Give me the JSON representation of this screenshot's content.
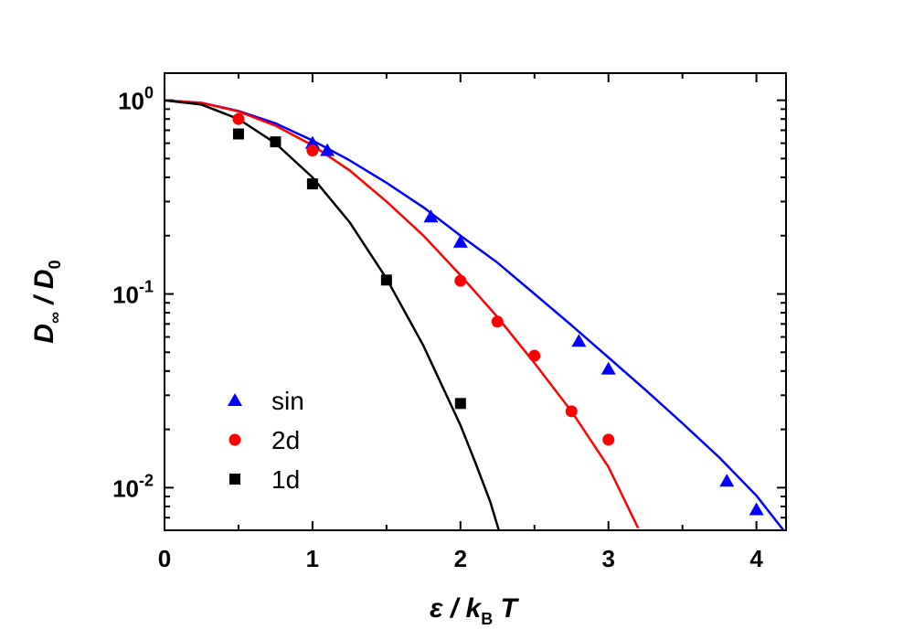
{
  "chart_data": {
    "type": "scatter",
    "title": "",
    "xlabel": {
      "main": "ε / k",
      "sub": "B",
      "tail": " T"
    },
    "ylabel": {
      "main": "D",
      "sub1": "∞",
      "mid": " / D",
      "sub2": "0"
    },
    "xlim": [
      0,
      4.2
    ],
    "ylim_log10": [
      -2.22,
      0.14
    ],
    "yscale": "log",
    "x_ticks": [
      {
        "value": 0,
        "label": "0"
      },
      {
        "value": 1,
        "label": "1"
      },
      {
        "value": 2,
        "label": "2"
      },
      {
        "value": 3,
        "label": "3"
      },
      {
        "value": 4,
        "label": "4"
      }
    ],
    "y_ticks": [
      {
        "exp": 0,
        "base": "10",
        "sup": "0"
      },
      {
        "exp": -1,
        "base": "10",
        "sup": "-1"
      },
      {
        "exp": -2,
        "base": "10",
        "sup": "-2"
      }
    ],
    "legend_position": "bottom-left",
    "series": [
      {
        "name": "sin",
        "color": "#0000ff",
        "marker": "triangle",
        "points": [
          {
            "x": 1.0,
            "y": 0.6
          },
          {
            "x": 1.1,
            "y": 0.55
          },
          {
            "x": 1.8,
            "y": 0.25
          },
          {
            "x": 2.0,
            "y": 0.185
          },
          {
            "x": 2.8,
            "y": 0.057
          },
          {
            "x": 3.0,
            "y": 0.041
          },
          {
            "x": 3.8,
            "y": 0.0108
          },
          {
            "x": 4.0,
            "y": 0.0077
          }
        ],
        "fit_curve": [
          {
            "x": 0.0,
            "y": 1.0
          },
          {
            "x": 0.25,
            "y": 0.97
          },
          {
            "x": 0.5,
            "y": 0.88
          },
          {
            "x": 0.75,
            "y": 0.76
          },
          {
            "x": 1.0,
            "y": 0.62
          },
          {
            "x": 1.25,
            "y": 0.49
          },
          {
            "x": 1.5,
            "y": 0.375
          },
          {
            "x": 1.75,
            "y": 0.28
          },
          {
            "x": 2.0,
            "y": 0.2
          },
          {
            "x": 2.25,
            "y": 0.145
          },
          {
            "x": 2.5,
            "y": 0.1
          },
          {
            "x": 2.75,
            "y": 0.069
          },
          {
            "x": 3.0,
            "y": 0.047
          },
          {
            "x": 3.25,
            "y": 0.032
          },
          {
            "x": 3.5,
            "y": 0.0215
          },
          {
            "x": 3.75,
            "y": 0.0143
          },
          {
            "x": 4.0,
            "y": 0.0091
          },
          {
            "x": 4.2,
            "y": 0.0058
          }
        ]
      },
      {
        "name": "2d",
        "color": "#ff0000",
        "marker": "circle",
        "points": [
          {
            "x": 0.5,
            "y": 0.8
          },
          {
            "x": 1.0,
            "y": 0.55
          },
          {
            "x": 2.0,
            "y": 0.117
          },
          {
            "x": 2.25,
            "y": 0.072
          },
          {
            "x": 2.5,
            "y": 0.048
          },
          {
            "x": 2.75,
            "y": 0.0248
          },
          {
            "x": 3.0,
            "y": 0.0177
          }
        ],
        "fit_curve": [
          {
            "x": 0.0,
            "y": 1.0
          },
          {
            "x": 0.25,
            "y": 0.97
          },
          {
            "x": 0.5,
            "y": 0.875
          },
          {
            "x": 0.75,
            "y": 0.74
          },
          {
            "x": 1.0,
            "y": 0.585
          },
          {
            "x": 1.25,
            "y": 0.435
          },
          {
            "x": 1.5,
            "y": 0.3
          },
          {
            "x": 1.75,
            "y": 0.2
          },
          {
            "x": 2.0,
            "y": 0.125
          },
          {
            "x": 2.25,
            "y": 0.076
          },
          {
            "x": 2.5,
            "y": 0.044
          },
          {
            "x": 2.75,
            "y": 0.0248
          },
          {
            "x": 3.0,
            "y": 0.0128
          },
          {
            "x": 3.2,
            "y": 0.0062
          }
        ]
      },
      {
        "name": "1d",
        "color": "#000000",
        "marker": "square",
        "points": [
          {
            "x": 0.5,
            "y": 0.67
          },
          {
            "x": 0.75,
            "y": 0.61
          },
          {
            "x": 1.0,
            "y": 0.37
          },
          {
            "x": 1.5,
            "y": 0.118
          },
          {
            "x": 2.0,
            "y": 0.0272
          }
        ],
        "fit_curve": [
          {
            "x": 0.0,
            "y": 1.0
          },
          {
            "x": 0.25,
            "y": 0.95
          },
          {
            "x": 0.5,
            "y": 0.8
          },
          {
            "x": 0.75,
            "y": 0.6
          },
          {
            "x": 1.0,
            "y": 0.4
          },
          {
            "x": 1.25,
            "y": 0.235
          },
          {
            "x": 1.5,
            "y": 0.12
          },
          {
            "x": 1.75,
            "y": 0.054
          },
          {
            "x": 2.0,
            "y": 0.021
          },
          {
            "x": 2.1,
            "y": 0.0135
          },
          {
            "x": 2.2,
            "y": 0.0085
          },
          {
            "x": 2.26,
            "y": 0.006
          }
        ]
      }
    ]
  }
}
